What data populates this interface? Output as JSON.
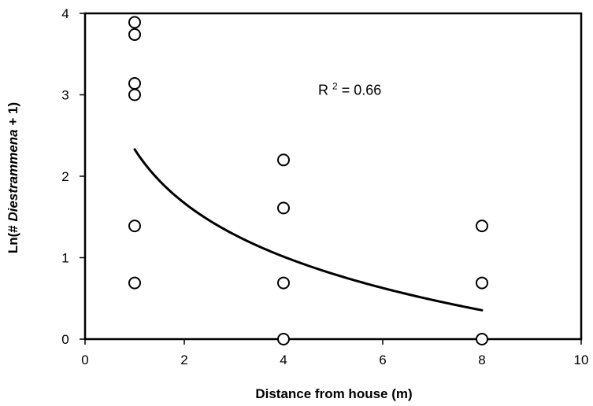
{
  "chart_data": {
    "type": "scatter",
    "xlabel": "Distance from house (m)",
    "ylabel": {
      "prefix": "Ln(# ",
      "italic": "Diestrammena",
      "suffix": " + 1)"
    },
    "xlim": [
      0,
      10
    ],
    "ylim": [
      0,
      4
    ],
    "x_ticks": [
      0,
      2,
      4,
      6,
      8,
      10
    ],
    "y_ticks": [
      0,
      1,
      2,
      3,
      4
    ],
    "grid": false,
    "legend": "none",
    "points": [
      {
        "x": 1,
        "y": 3.89
      },
      {
        "x": 1,
        "y": 3.74
      },
      {
        "x": 1,
        "y": 3.14
      },
      {
        "x": 1,
        "y": 3.0
      },
      {
        "x": 1,
        "y": 1.39
      },
      {
        "x": 1,
        "y": 0.69
      },
      {
        "x": 4,
        "y": 2.2
      },
      {
        "x": 4,
        "y": 1.61
      },
      {
        "x": 4,
        "y": 0.69
      },
      {
        "x": 4,
        "y": 0
      },
      {
        "x": 8,
        "y": 1.39
      },
      {
        "x": 8,
        "y": 0.69
      },
      {
        "x": 8,
        "y": 0
      }
    ],
    "trendline": {
      "type": "logarithmic",
      "intercept": 2.33,
      "slope": -0.95,
      "x_start": 1,
      "x_end": 8
    },
    "annotation": {
      "r_prefix": "R",
      "r_superscript": "2",
      "r_value": " = 0.66",
      "x": 7,
      "y": 3.0
    },
    "colors": {
      "marker_fill": "#ffffff",
      "marker_stroke": "#000000",
      "line": "#000000",
      "axis": "#000000",
      "background": "#ffffff"
    }
  }
}
